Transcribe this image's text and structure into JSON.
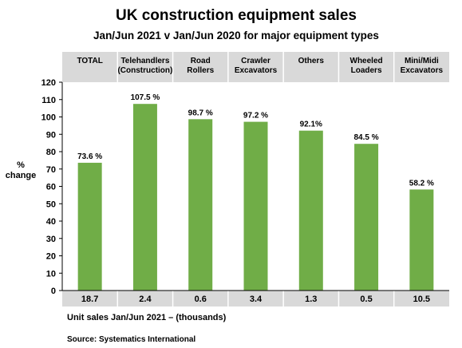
{
  "chart_data": {
    "type": "bar",
    "title": "UK construction equipment sales",
    "subtitle": "Jan/Jun  2021  v  Jan/Jun 2020 for major equipment types",
    "ylabel": [
      "%",
      "change"
    ],
    "ylim": [
      0,
      120
    ],
    "yticks": [
      0,
      10,
      20,
      30,
      40,
      50,
      60,
      70,
      80,
      90,
      100,
      110,
      120
    ],
    "grid": false,
    "categories": [
      [
        "TOTAL"
      ],
      [
        "Telehandlers",
        "(Construction)"
      ],
      [
        "Road",
        "Rollers"
      ],
      [
        "Crawler",
        "Excavators"
      ],
      [
        "Others"
      ],
      [
        "Wheeled",
        "Loaders"
      ],
      [
        "Mini/Midi",
        "Excavators"
      ]
    ],
    "values": [
      73.6,
      107.5,
      98.7,
      97.2,
      92.1,
      84.5,
      58.2
    ],
    "data_labels": [
      "73.6 %",
      "107.5 %",
      "98.7 %",
      "97.2 %",
      "92.1%",
      "84.5 %",
      "58.2 %"
    ],
    "unit_sales": [
      "18.7",
      "2.4",
      "0.6",
      "3.4",
      "1.3",
      "0.5",
      "10.5"
    ],
    "unit_sales_label": "Unit sales Jan/Jun 2021 – (thousands)",
    "bar_color": "#70ad47"
  },
  "footer": {
    "source": "Source: Systematics International"
  },
  "colors": {
    "header_band": "#d9d9d9",
    "plot_background": "#ffffff",
    "axis": "#000000"
  }
}
